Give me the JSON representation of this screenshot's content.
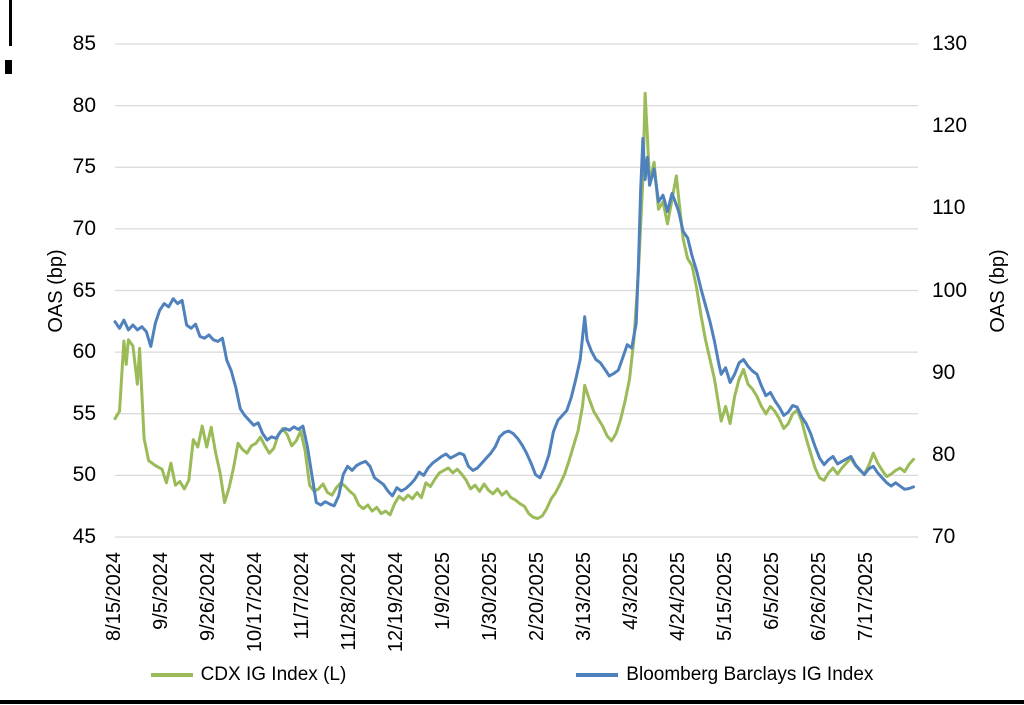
{
  "page": {
    "background": "#ffffff",
    "border_color": "#000000"
  },
  "chart_data": {
    "type": "line",
    "title": "",
    "ylabel_left": "OAS (bp)",
    "ylabel_right": "OAS (bp)",
    "grid": "horizontal",
    "gridline_color": "#d9d9d9",
    "legend_position": "bottom",
    "left_axis": {
      "min": 45,
      "max": 85,
      "ticks": [
        45,
        50,
        55,
        60,
        65,
        70,
        75,
        80,
        85
      ]
    },
    "right_axis": {
      "min": 70,
      "max": 130,
      "ticks": [
        70,
        80,
        90,
        100,
        110,
        120,
        130
      ]
    },
    "x_tick_labels": [
      "8/15/2024",
      "9/5/2024",
      "9/26/2024",
      "10/17/2024",
      "11/7/2024",
      "11/28/2024",
      "12/19/2024",
      "1/9/2025",
      "1/30/2025",
      "2/20/2025",
      "3/13/2025",
      "4/3/2025",
      "4/24/2025",
      "5/15/2025",
      "6/5/2025",
      "6/26/2025",
      "7/17/2025"
    ],
    "x_tick_days": [
      0,
      21,
      42,
      63,
      84,
      105,
      126,
      147,
      168,
      189,
      210,
      231,
      252,
      273,
      294,
      315,
      336
    ],
    "x_domain_days": [
      0,
      359
    ],
    "series": [
      {
        "name": "CDX IG Index (L)",
        "axis": "left",
        "color": "#9bbb59",
        "days": [
          0,
          2,
          4,
          5,
          6,
          8,
          10,
          11,
          13,
          15,
          18,
          21,
          23,
          25,
          27,
          29,
          31,
          33,
          35,
          37,
          39,
          41,
          43,
          45,
          47,
          49,
          51,
          53,
          55,
          57,
          59,
          61,
          63,
          65,
          67,
          69,
          71,
          73,
          75,
          77,
          79,
          81,
          83,
          85,
          87,
          89,
          91,
          93,
          95,
          97,
          99,
          101,
          103,
          105,
          107,
          109,
          111,
          113,
          115,
          117,
          119,
          121,
          123,
          125,
          127,
          129,
          131,
          133,
          135,
          137,
          139,
          141,
          143,
          145,
          147,
          149,
          151,
          153,
          155,
          157,
          159,
          161,
          163,
          165,
          167,
          169,
          171,
          173,
          175,
          177,
          179,
          181,
          183,
          185,
          187,
          189,
          191,
          193,
          195,
          197,
          199,
          201,
          203,
          205,
          207,
          209,
          210,
          212,
          214,
          216,
          218,
          220,
          222,
          224,
          226,
          228,
          230,
          232,
          234,
          236,
          237,
          238,
          239,
          241,
          243,
          245,
          247,
          249,
          251,
          252,
          254,
          256,
          258,
          260,
          262,
          264,
          266,
          268,
          270,
          271,
          273,
          275,
          277,
          279,
          281,
          283,
          285,
          287,
          289,
          291,
          293,
          295,
          297,
          299,
          301,
          303,
          305,
          307,
          309,
          311,
          313,
          315,
          317,
          319,
          321,
          323,
          325,
          327,
          329,
          331,
          333,
          335,
          337,
          339,
          341,
          343,
          345,
          347,
          349,
          351,
          353,
          355,
          357
        ],
        "values": [
          54.6,
          55.2,
          60.9,
          59.0,
          61.0,
          60.5,
          57.4,
          60.3,
          53.0,
          51.2,
          50.8,
          50.5,
          49.4,
          51.0,
          49.2,
          49.5,
          48.9,
          49.6,
          52.9,
          52.3,
          54.0,
          52.3,
          53.9,
          51.8,
          50.2,
          47.8,
          49.0,
          50.6,
          52.6,
          52.1,
          51.8,
          52.4,
          52.6,
          53.1,
          52.4,
          51.8,
          52.2,
          53.3,
          53.8,
          53.3,
          52.4,
          52.8,
          53.6,
          52.0,
          49.2,
          48.7,
          48.9,
          49.3,
          48.6,
          48.4,
          49.0,
          49.4,
          49.1,
          48.7,
          48.4,
          47.6,
          47.3,
          47.6,
          47.1,
          47.4,
          46.9,
          47.1,
          46.8,
          47.7,
          48.3,
          48.0,
          48.4,
          48.1,
          48.6,
          48.2,
          49.4,
          49.1,
          49.7,
          50.2,
          50.4,
          50.6,
          50.2,
          50.5,
          50.1,
          49.6,
          48.9,
          49.2,
          48.7,
          49.3,
          48.8,
          48.5,
          48.9,
          48.4,
          48.7,
          48.2,
          48.0,
          47.7,
          47.5,
          46.9,
          46.6,
          46.5,
          46.7,
          47.3,
          48.1,
          48.6,
          49.3,
          50.1,
          51.2,
          52.4,
          53.6,
          55.6,
          57.3,
          56.2,
          55.2,
          54.6,
          54.0,
          53.2,
          52.8,
          53.4,
          54.5,
          56.0,
          57.8,
          61.0,
          66.5,
          74.0,
          81.0,
          77.5,
          73.8,
          75.4,
          71.6,
          72.2,
          70.4,
          72.4,
          74.3,
          72.5,
          69.2,
          67.6,
          67.0,
          65.2,
          63.0,
          61.0,
          59.4,
          57.8,
          55.6,
          54.4,
          55.6,
          54.2,
          56.4,
          57.8,
          58.6,
          57.4,
          57.0,
          56.4,
          55.6,
          55.0,
          55.6,
          55.2,
          54.6,
          53.8,
          54.2,
          55.0,
          55.3,
          54.4,
          53.0,
          51.8,
          50.6,
          49.8,
          49.6,
          50.2,
          50.6,
          50.1,
          50.6,
          51.0,
          51.4,
          50.8,
          50.4,
          50.1,
          50.8,
          51.8,
          51.0,
          50.4,
          49.9,
          50.1,
          50.4,
          50.6,
          50.3,
          50.9,
          51.3
        ]
      },
      {
        "name": "Bloomberg Barclays IG Index",
        "axis": "right",
        "color": "#4f81bd",
        "days": [
          0,
          2,
          4,
          6,
          8,
          10,
          12,
          14,
          16,
          18,
          20,
          22,
          24,
          26,
          28,
          30,
          32,
          34,
          36,
          38,
          40,
          42,
          44,
          46,
          48,
          50,
          52,
          54,
          56,
          58,
          60,
          62,
          64,
          66,
          68,
          70,
          72,
          74,
          76,
          78,
          80,
          82,
          84,
          86,
          88,
          90,
          92,
          94,
          96,
          98,
          100,
          102,
          104,
          106,
          108,
          110,
          112,
          114,
          116,
          118,
          120,
          122,
          124,
          126,
          128,
          130,
          132,
          134,
          136,
          138,
          140,
          142,
          144,
          146,
          148,
          150,
          152,
          154,
          156,
          158,
          160,
          162,
          164,
          166,
          168,
          170,
          172,
          174,
          176,
          178,
          180,
          182,
          184,
          186,
          188,
          190,
          192,
          194,
          196,
          198,
          200,
          202,
          204,
          206,
          208,
          210,
          211,
          213,
          215,
          217,
          219,
          221,
          223,
          225,
          227,
          229,
          231,
          233,
          234,
          235,
          236,
          237,
          238,
          239,
          241,
          243,
          245,
          247,
          249,
          251,
          252,
          254,
          256,
          258,
          260,
          262,
          264,
          266,
          268,
          270,
          271,
          273,
          275,
          277,
          279,
          281,
          283,
          285,
          287,
          289,
          291,
          293,
          295,
          297,
          299,
          301,
          303,
          305,
          307,
          309,
          311,
          313,
          315,
          317,
          319,
          321,
          323,
          325,
          327,
          329,
          331,
          333,
          335,
          337,
          339,
          341,
          343,
          345,
          347,
          349,
          351,
          353,
          355,
          357
        ],
        "values": [
          96.2,
          95.4,
          96.4,
          95.2,
          95.8,
          95.2,
          95.6,
          95.0,
          93.2,
          96.0,
          97.6,
          98.4,
          98.0,
          99.0,
          98.4,
          98.8,
          95.8,
          95.4,
          95.9,
          94.4,
          94.2,
          94.6,
          94.0,
          93.8,
          94.2,
          91.5,
          90.2,
          88.2,
          85.6,
          84.8,
          84.2,
          83.6,
          83.9,
          82.6,
          81.8,
          82.2,
          82.0,
          82.8,
          83.2,
          83.0,
          83.4,
          83.1,
          83.5,
          81.0,
          77.6,
          74.2,
          73.9,
          74.3,
          74.0,
          73.8,
          75.0,
          77.6,
          78.6,
          78.1,
          78.7,
          79.0,
          79.2,
          78.6,
          77.2,
          76.8,
          76.4,
          75.6,
          75.0,
          76.0,
          75.6,
          75.9,
          76.4,
          77.0,
          77.9,
          77.5,
          78.4,
          79.0,
          79.4,
          79.8,
          80.1,
          79.6,
          79.9,
          80.2,
          80.0,
          78.6,
          78.1,
          78.4,
          79.0,
          79.6,
          80.2,
          81.0,
          82.2,
          82.7,
          82.9,
          82.6,
          82.0,
          81.2,
          80.2,
          79.0,
          77.6,
          77.2,
          78.4,
          80.0,
          82.8,
          84.2,
          84.8,
          85.4,
          87.0,
          89.2,
          91.6,
          96.8,
          94.0,
          92.6,
          91.6,
          91.2,
          90.4,
          89.6,
          89.9,
          90.3,
          91.8,
          93.4,
          93.0,
          96.0,
          103.0,
          112.0,
          118.5,
          113.5,
          116.2,
          112.8,
          114.8,
          110.8,
          111.6,
          109.6,
          111.8,
          110.4,
          109.6,
          107.2,
          106.4,
          104.2,
          102.4,
          100.2,
          98.2,
          96.2,
          93.8,
          91.0,
          89.8,
          90.6,
          88.8,
          89.8,
          91.2,
          91.6,
          90.8,
          90.2,
          89.8,
          88.4,
          87.2,
          87.6,
          86.6,
          85.8,
          84.8,
          85.2,
          86.0,
          85.8,
          84.6,
          83.8,
          82.6,
          81.0,
          79.6,
          78.8,
          79.4,
          79.8,
          78.9,
          79.2,
          79.5,
          79.8,
          78.8,
          78.2,
          77.6,
          78.3,
          78.6,
          77.8,
          77.2,
          76.6,
          76.2,
          76.6,
          76.2,
          75.8,
          75.9,
          76.1
        ]
      }
    ]
  }
}
